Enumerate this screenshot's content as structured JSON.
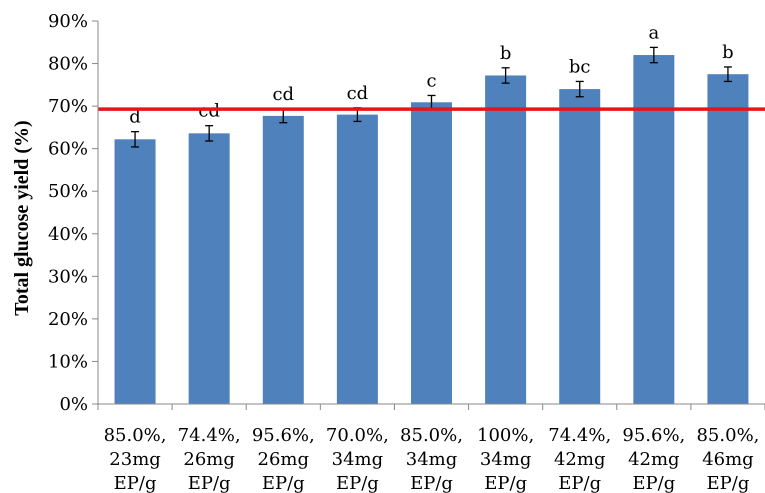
{
  "chart_data": {
    "type": "bar",
    "title": "",
    "xlabel": "",
    "ylabel": "Total glucose yield (%)",
    "ylim": [
      0,
      90
    ],
    "ytick_step": 10,
    "ytick_labels": [
      "0%",
      "10%",
      "20%",
      "30%",
      "40%",
      "50%",
      "60%",
      "70%",
      "80%",
      "90%"
    ],
    "grid": false,
    "legend": "none",
    "categories": [
      [
        "85.0%,",
        "23mg",
        "EP/g"
      ],
      [
        "74.4%,",
        "26mg",
        "EP/g"
      ],
      [
        "95.6%,",
        "26mg",
        "EP/g"
      ],
      [
        "70.0%,",
        "34mg",
        "EP/g"
      ],
      [
        "85.0%,",
        "34mg",
        "EP/g"
      ],
      [
        "100%,",
        "34mg",
        "EP/g"
      ],
      [
        "74.4%,",
        "42mg",
        "EP/g"
      ],
      [
        "95.6%,",
        "42mg",
        "EP/g"
      ],
      [
        "85.0%,",
        "46mg",
        "EP/g"
      ]
    ],
    "values": [
      62.2,
      63.6,
      67.7,
      68.0,
      70.9,
      77.2,
      74.0,
      82.0,
      77.5
    ],
    "errors": [
      1.8,
      1.8,
      1.6,
      1.6,
      1.6,
      1.8,
      1.8,
      1.8,
      1.7
    ],
    "annotations": [
      "d",
      "cd",
      "cd",
      "cd",
      "c",
      "b",
      "bc",
      "a",
      "b"
    ],
    "reference_line": {
      "value": 69.3,
      "color": "#e8141c"
    },
    "bar_color": "#4f81bd"
  }
}
